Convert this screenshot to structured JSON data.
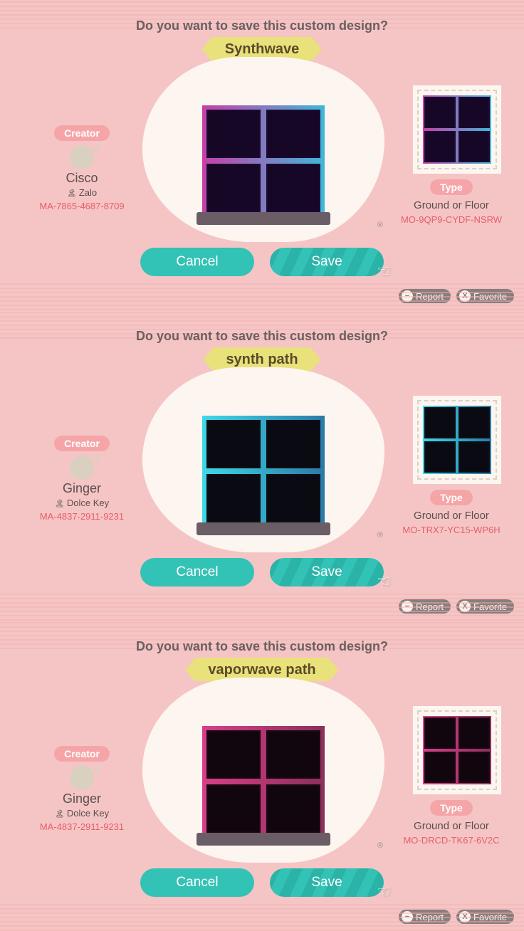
{
  "cards": [
    {
      "prompt": "Do you want to save this custom design?",
      "title": "Synthwave",
      "creator_label": "Creator",
      "creator_name": "Cisco",
      "island": "Zalo",
      "creator_code": "MA-7865-4687-8709",
      "type_label": "Type",
      "type_desc": "Ground or Floor",
      "design_code": "MO-9QP9-CYDF-NSRW",
      "cancel": "Cancel",
      "save": "Save",
      "report": "Report",
      "favorite": "Favorite",
      "tile": {
        "bg": "#1a0b33",
        "grid": "linear-gradient(90deg,#c73fa8,#3fb7d8)",
        "cell": "#170726"
      }
    },
    {
      "prompt": "Do you want to save this custom design?",
      "title": "synth path",
      "creator_label": "Creator",
      "creator_name": "Ginger",
      "island": "Dolce Key",
      "creator_code": "MA-4837-2911-9231",
      "type_label": "Type",
      "type_desc": "Ground or Floor",
      "design_code": "MO-TRX7-YC15-WP6H",
      "cancel": "Cancel",
      "save": "Save",
      "report": "Report",
      "favorite": "Favorite",
      "tile": {
        "bg": "#0e0e14",
        "grid": "linear-gradient(90deg,#3fd8e8,#2a7aa8)",
        "cell": "#0a0a12"
      }
    },
    {
      "prompt": "Do you want to save this custom design?",
      "title": "vaporwave path",
      "creator_label": "Creator",
      "creator_name": "Ginger",
      "island": "Dolce Key",
      "creator_code": "MA-4837-2911-9231",
      "type_label": "Type",
      "type_desc": "Ground or Floor",
      "design_code": "MO-DRCD-TK67-6V2C",
      "cancel": "Cancel",
      "save": "Save",
      "report": "Report",
      "favorite": "Favorite",
      "tile": {
        "bg": "#1a0915",
        "grid": "linear-gradient(90deg,#d83f88,#8a2f5a)",
        "cell": "#12060e"
      }
    }
  ]
}
